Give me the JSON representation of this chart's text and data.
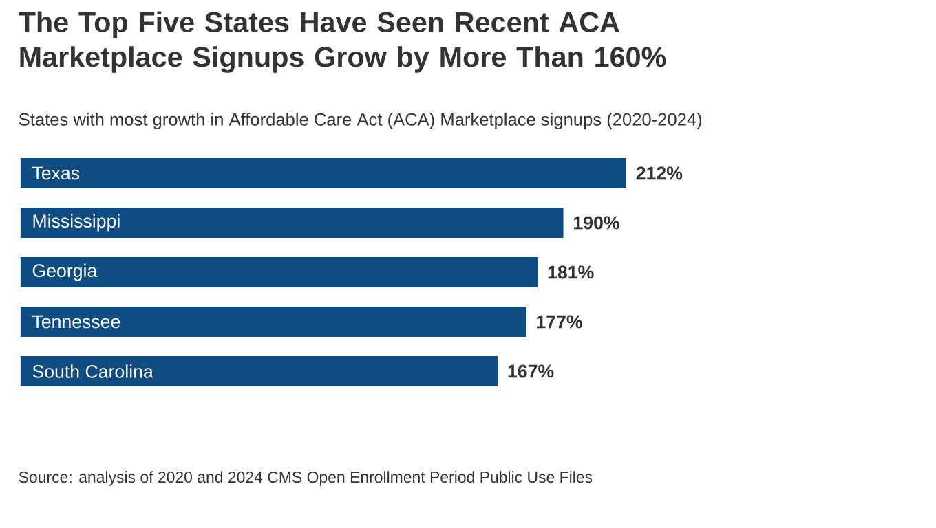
{
  "chart_data": {
    "type": "bar",
    "orientation": "horizontal",
    "title": "The Top Five States Have Seen Recent ACA Marketplace Signups Grow by More Than 160%",
    "subtitle": "States with most growth in Affordable Care Act (ACA) Marketplace signups (2020-2024)",
    "categories": [
      "Texas",
      "Mississippi",
      "Georgia",
      "Tennessee",
      "South Carolina"
    ],
    "values": [
      212,
      190,
      181,
      177,
      167
    ],
    "value_labels": [
      "212%",
      "190%",
      "181%",
      "177%",
      "167%"
    ],
    "color": "#0f4c81",
    "annotations": [
      "Source: analysis of 2020 and 2024 CMS Open Enrollment Period Public Use Files"
    ]
  }
}
